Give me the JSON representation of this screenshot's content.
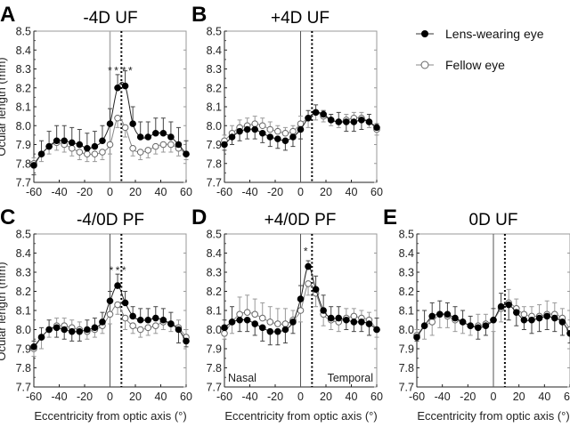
{
  "chart_data": {
    "type": "line",
    "figure_ylabel": "Ocular length (mm)",
    "xlabel": "Eccentricity from optic axis (°)",
    "x": [
      -60,
      -54,
      -48,
      -42,
      -36,
      -30,
      -24,
      -18,
      -12,
      -6,
      0,
      6,
      12,
      18,
      24,
      30,
      36,
      42,
      48,
      54,
      60
    ],
    "xlim": [
      -60,
      60
    ],
    "xticks": [
      "-60",
      "-40",
      "-20",
      "0",
      "20",
      "40",
      "60"
    ],
    "ylim": [
      7.7,
      8.5
    ],
    "yticks": [
      "7.7",
      "7.8",
      "7.9",
      "8.0",
      "8.1",
      "8.2",
      "8.3",
      "8.4",
      "8.5"
    ],
    "optic_axis_line_x": 0,
    "dotted_line_x": 9,
    "grid": false,
    "legend": {
      "placement": "top-right",
      "entries": [
        {
          "label": "Lens-wearing eye",
          "marker": "filled-circle",
          "color": "#000000"
        },
        {
          "label": "Fellow eye",
          "marker": "open-circle",
          "color": "#888888"
        }
      ]
    },
    "panels": [
      {
        "letter": "A",
        "title": "-4D UF",
        "stars": [
          {
            "x": 0,
            "text": "*"
          },
          {
            "x": 5,
            "text": "*"
          },
          {
            "x": 11,
            "text": "*"
          },
          {
            "x": 16,
            "text": "*"
          }
        ],
        "annotations": [],
        "series": [
          {
            "name": "Lens-wearing eye",
            "values": [
              7.79,
              7.85,
              7.89,
              7.92,
              7.92,
              7.91,
              7.9,
              7.88,
              7.89,
              7.92,
              8.01,
              8.2,
              8.21,
              8.01,
              7.94,
              7.94,
              7.96,
              7.96,
              7.94,
              7.9,
              7.85
            ],
            "err": [
              0.05,
              0.07,
              0.08,
              0.08,
              0.08,
              0.08,
              0.08,
              0.08,
              0.08,
              0.08,
              0.08,
              0.07,
              0.08,
              0.09,
              0.08,
              0.08,
              0.08,
              0.08,
              0.08,
              0.09,
              0.07
            ]
          },
          {
            "name": "Fellow eye",
            "values": [
              7.8,
              7.85,
              7.89,
              7.91,
              7.9,
              7.88,
              7.86,
              7.85,
              7.85,
              7.86,
              7.9,
              8.04,
              7.99,
              7.88,
              7.86,
              7.87,
              7.89,
              7.9,
              7.9,
              7.88,
              7.85
            ],
            "err": [
              0.03,
              0.04,
              0.04,
              0.04,
              0.04,
              0.04,
              0.04,
              0.04,
              0.04,
              0.04,
              0.05,
              0.05,
              0.05,
              0.04,
              0.04,
              0.04,
              0.04,
              0.04,
              0.04,
              0.04,
              0.03
            ]
          }
        ]
      },
      {
        "letter": "B",
        "title": "+4D UF",
        "stars": [],
        "annotations": [],
        "series": [
          {
            "name": "Lens-wearing eye",
            "values": [
              7.9,
              7.94,
              7.97,
              7.98,
              7.98,
              7.96,
              7.94,
              7.93,
              7.92,
              7.94,
              7.98,
              8.04,
              8.07,
              8.06,
              8.03,
              8.02,
              8.02,
              8.02,
              8.03,
              8.02,
              7.99
            ],
            "err": [
              0.03,
              0.04,
              0.05,
              0.05,
              0.05,
              0.05,
              0.05,
              0.05,
              0.05,
              0.05,
              0.05,
              0.04,
              0.04,
              0.02,
              0.03,
              0.05,
              0.05,
              0.05,
              0.05,
              0.04,
              0.02
            ]
          },
          {
            "name": "Fellow eye",
            "values": [
              7.92,
              7.96,
              7.99,
              8.0,
              8.01,
              8.0,
              7.98,
              7.97,
              7.96,
              7.97,
              8.01,
              8.04,
              8.07,
              8.05,
              8.03,
              8.02,
              8.03,
              8.04,
              8.04,
              8.02,
              7.98
            ],
            "err": [
              0.03,
              0.04,
              0.04,
              0.04,
              0.04,
              0.04,
              0.04,
              0.03,
              0.03,
              0.03,
              0.04,
              0.05,
              0.04,
              0.03,
              0.03,
              0.03,
              0.03,
              0.03,
              0.03,
              0.03,
              0.03
            ]
          }
        ]
      },
      {
        "letter": "C",
        "title": "-4/0D PF",
        "stars": [
          {
            "x": 1,
            "text": "*"
          },
          {
            "x": 6,
            "text": "*"
          },
          {
            "x": 11,
            "text": "*"
          }
        ],
        "annotations": [],
        "series": [
          {
            "name": "Lens-wearing eye",
            "values": [
              7.91,
              7.96,
              8.0,
              8.01,
              8.0,
              7.99,
              7.99,
              8.0,
              8.01,
              8.04,
              8.15,
              8.23,
              8.14,
              8.07,
              8.05,
              8.05,
              8.06,
              8.05,
              8.03,
              8.0,
              7.94
            ],
            "err": [
              0.03,
              0.05,
              0.05,
              0.05,
              0.05,
              0.05,
              0.05,
              0.05,
              0.05,
              0.05,
              0.05,
              0.06,
              0.06,
              0.05,
              0.06,
              0.06,
              0.06,
              0.06,
              0.06,
              0.07,
              0.03
            ]
          },
          {
            "name": "Fellow eye",
            "values": [
              7.9,
              7.96,
              8.0,
              8.02,
              8.02,
              8.01,
              8.0,
              7.99,
              8.0,
              8.02,
              8.08,
              8.13,
              8.06,
              8.02,
              8.0,
              8.01,
              8.02,
              8.04,
              8.03,
              8.01,
              7.96
            ],
            "err": [
              0.04,
              0.06,
              0.04,
              0.04,
              0.04,
              0.04,
              0.04,
              0.04,
              0.04,
              0.04,
              0.05,
              0.05,
              0.06,
              0.04,
              0.04,
              0.04,
              0.04,
              0.04,
              0.04,
              0.04,
              0.04
            ]
          }
        ]
      },
      {
        "letter": "D",
        "title": "+4/0D PF",
        "stars": [
          {
            "x": 4,
            "text": "*"
          }
        ],
        "annotations": [
          {
            "text": "Nasal",
            "position": "bottom-left"
          },
          {
            "text": "Temporal",
            "position": "bottom-right"
          }
        ],
        "series": [
          {
            "name": "Lens-wearing eye",
            "values": [
              8.01,
              8.04,
              8.05,
              8.05,
              8.03,
              8.01,
              7.99,
              7.99,
              8.0,
              8.04,
              8.16,
              8.33,
              8.21,
              8.1,
              8.06,
              8.06,
              8.05,
              8.04,
              8.04,
              8.03,
              8.0
            ],
            "err": [
              0.04,
              0.08,
              0.06,
              0.06,
              0.06,
              0.07,
              0.07,
              0.07,
              0.07,
              0.06,
              0.07,
              0.03,
              0.07,
              0.08,
              0.06,
              0.06,
              0.05,
              0.05,
              0.05,
              0.06,
              0.06
            ]
          },
          {
            "name": "Fellow eye",
            "values": [
              7.98,
              8.04,
              8.08,
              8.09,
              8.08,
              8.06,
              8.04,
              8.03,
              8.03,
              8.05,
              8.1,
              8.24,
              8.19,
              8.08,
              8.05,
              8.04,
              8.06,
              8.07,
              8.06,
              8.05,
              8.0
            ],
            "err": [
              0.03,
              0.06,
              0.09,
              0.09,
              0.08,
              0.08,
              0.08,
              0.08,
              0.08,
              0.05,
              0.06,
              0.06,
              0.07,
              0.06,
              0.05,
              0.05,
              0.05,
              0.04,
              0.04,
              0.04,
              0.04
            ]
          }
        ]
      },
      {
        "letter": "E",
        "title": "0D UF",
        "stars": [],
        "annotations": [],
        "series": [
          {
            "name": "Lens-wearing eye",
            "values": [
              7.96,
              8.02,
              8.07,
              8.08,
              8.08,
              8.06,
              8.04,
              8.02,
              8.01,
              8.02,
              8.05,
              8.12,
              8.13,
              8.09,
              8.05,
              8.05,
              8.06,
              8.07,
              8.06,
              8.04,
              7.98
            ],
            "err": [
              0.02,
              0.08,
              0.07,
              0.07,
              0.06,
              0.06,
              0.06,
              0.05,
              0.06,
              0.05,
              0.06,
              0.07,
              0.08,
              0.07,
              0.05,
              0.07,
              0.07,
              0.07,
              0.07,
              0.07,
              0.05
            ]
          },
          {
            "name": "Fellow eye",
            "values": [
              7.97,
              8.02,
              8.04,
              8.08,
              8.07,
              8.05,
              8.04,
              8.02,
              8.02,
              8.03,
              8.05,
              8.11,
              8.14,
              8.11,
              8.08,
              8.07,
              8.07,
              8.08,
              8.08,
              8.06,
              8.0
            ],
            "err": [
              0.03,
              0.07,
              0.07,
              0.07,
              0.06,
              0.06,
              0.06,
              0.05,
              0.06,
              0.05,
              0.06,
              0.07,
              0.07,
              0.05,
              0.04,
              0.05,
              0.06,
              0.07,
              0.06,
              0.05,
              0.05
            ]
          }
        ]
      }
    ]
  }
}
